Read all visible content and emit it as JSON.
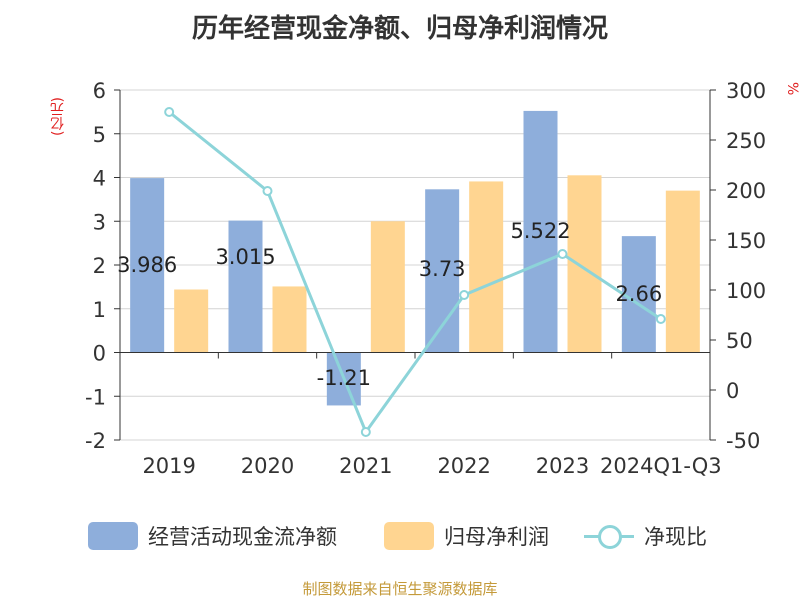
{
  "title": "历年经营现金净额、归母净利润情况",
  "source": "制图数据来自恒生聚源数据库",
  "colors": {
    "series1": "#8eaedb",
    "series2": "#ffd591",
    "series3": "#8dd4d9",
    "axis": "#333333",
    "grid": "#d4d4d4"
  },
  "chart_data": {
    "type": "bar",
    "title": "历年经营现金净额、归母净利润情况",
    "categories": [
      "2019",
      "2020",
      "2021",
      "2022",
      "2023",
      "2024Q1-Q3"
    ],
    "y_left": {
      "label": "(亿元)",
      "ylim": [
        -2,
        6
      ],
      "ticks": [
        "-2",
        "-1",
        "0",
        "1",
        "2",
        "3",
        "4",
        "5",
        "6"
      ]
    },
    "y_right": {
      "label": "%",
      "ylim": [
        -50,
        300
      ],
      "ticks": [
        "-50",
        "0",
        "50",
        "100",
        "150",
        "200",
        "250",
        "300"
      ]
    },
    "grid": true,
    "legend_position": "bottom",
    "series": [
      {
        "name": "经营活动现金流净额",
        "type": "bar",
        "axis": "left",
        "values": [
          3.986,
          3.015,
          -1.21,
          3.73,
          5.522,
          2.66
        ],
        "labels": [
          "3.986",
          "3.015",
          "-1.21",
          "3.73",
          "5.522",
          "2.66"
        ]
      },
      {
        "name": "归母净利润",
        "type": "bar",
        "axis": "left",
        "values": [
          1.44,
          1.51,
          3.0,
          3.91,
          4.05,
          3.7
        ]
      },
      {
        "name": "净现比",
        "type": "line",
        "axis": "right",
        "values": [
          278,
          199,
          -42,
          95,
          136,
          71
        ]
      }
    ]
  }
}
